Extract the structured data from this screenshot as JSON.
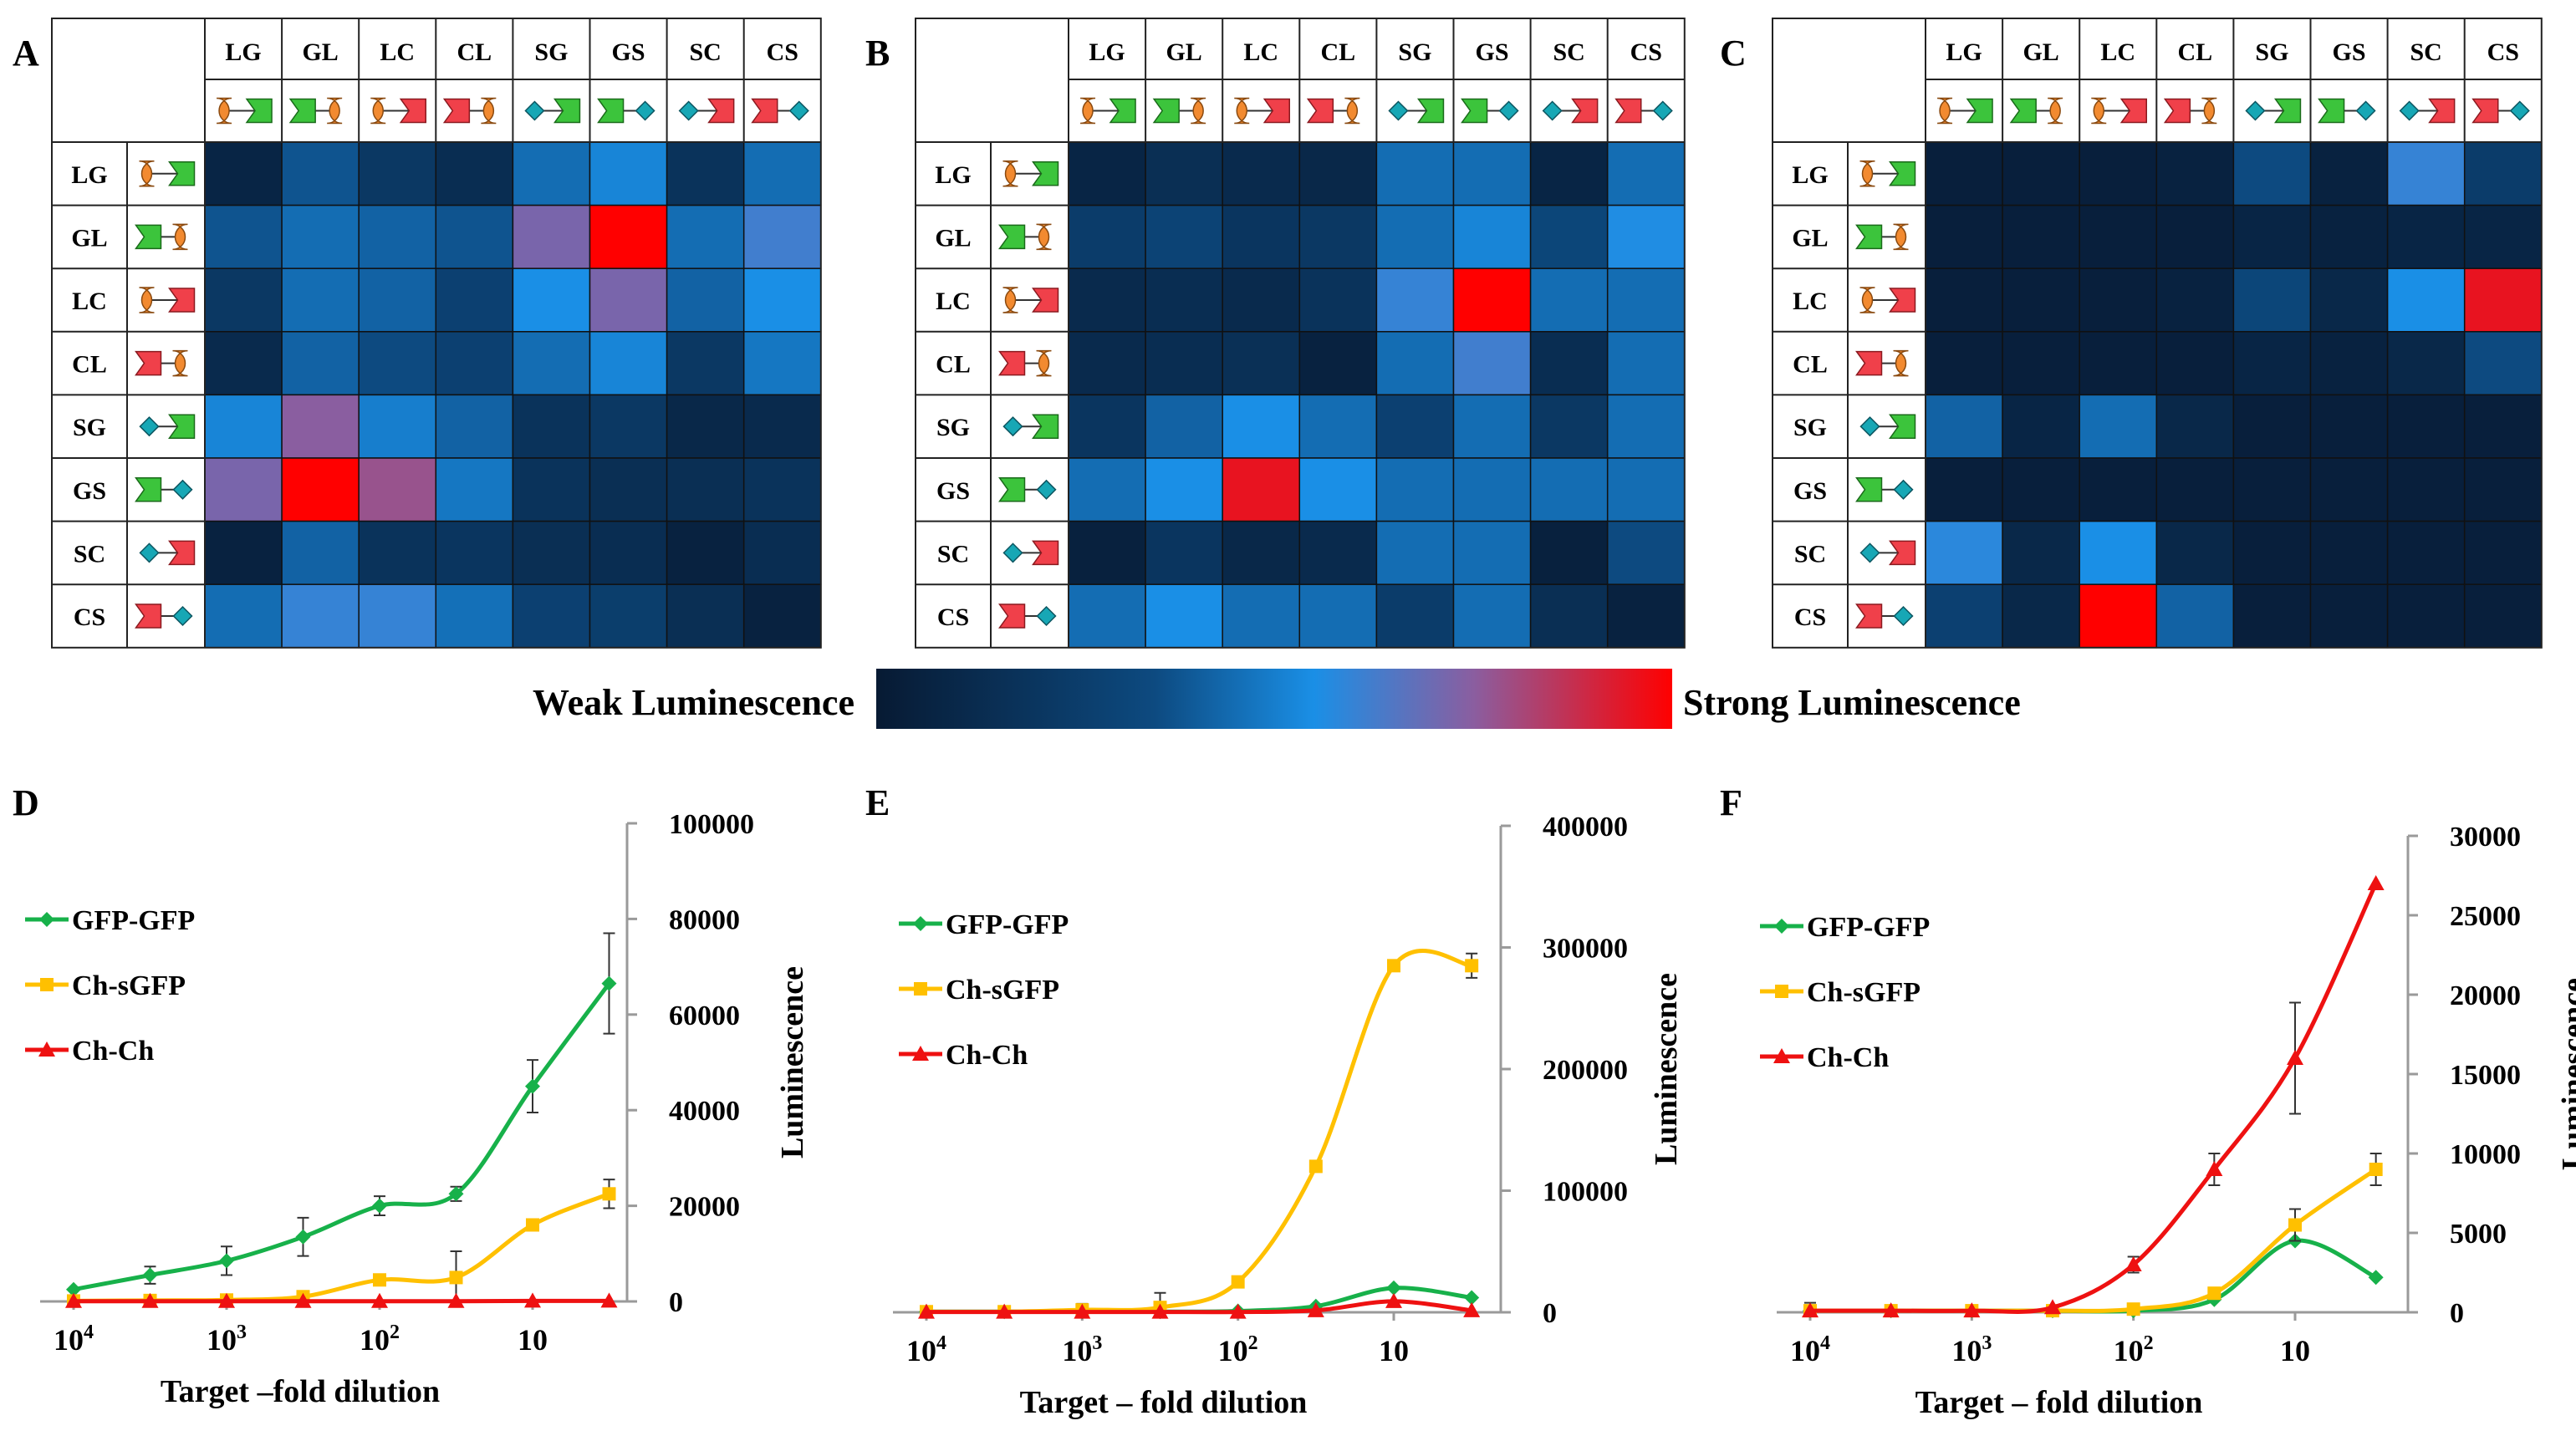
{
  "figure": {
    "colorbar": {
      "low_label": "Weak Luminescence",
      "high_label": "Strong Luminescence"
    },
    "colors": {
      "low": "#071a33",
      "mid": "#1a8fe6",
      "violet": "#8a5ea0",
      "high": "#ff0000",
      "grid": "#000000",
      "green": "#17b14a",
      "yellow": "#ffc000",
      "red": "#ee1111"
    },
    "icons": {
      "L": "orange-cup-icon",
      "G": "green-cup-icon",
      "C": "red-cup-icon",
      "S": "teal-diamond-icon"
    }
  },
  "chart_data": [
    {
      "panel": "A",
      "type": "heatmap",
      "scale": "0 = weak luminescence, 1 = strong luminescence",
      "columns": [
        "LG",
        "GL",
        "LC",
        "CL",
        "SG",
        "GS",
        "SC",
        "CS"
      ],
      "rows": [
        "LG",
        "GL",
        "LC",
        "CL",
        "SG",
        "GS",
        "SC",
        "CS"
      ],
      "values": [
        [
          0.08,
          0.38,
          0.22,
          0.14,
          0.45,
          0.52,
          0.18,
          0.45
        ],
        [
          0.38,
          0.45,
          0.42,
          0.38,
          0.72,
          1.0,
          0.45,
          0.62
        ],
        [
          0.22,
          0.45,
          0.42,
          0.28,
          0.55,
          0.72,
          0.42,
          0.55
        ],
        [
          0.12,
          0.42,
          0.35,
          0.28,
          0.45,
          0.52,
          0.22,
          0.48
        ],
        [
          0.52,
          0.75,
          0.5,
          0.42,
          0.18,
          0.22,
          0.1,
          0.12
        ],
        [
          0.72,
          1.0,
          0.78,
          0.48,
          0.18,
          0.15,
          0.15,
          0.18
        ],
        [
          0.06,
          0.42,
          0.18,
          0.2,
          0.15,
          0.14,
          0.06,
          0.14
        ],
        [
          0.45,
          0.6,
          0.6,
          0.46,
          0.28,
          0.26,
          0.15,
          0.06
        ]
      ]
    },
    {
      "panel": "B",
      "type": "heatmap",
      "scale": "0 = weak luminescence, 1 = strong luminescence",
      "columns": [
        "LG",
        "GL",
        "LC",
        "CL",
        "SG",
        "GS",
        "SC",
        "CS"
      ],
      "rows": [
        "LG",
        "GL",
        "LC",
        "CL",
        "SG",
        "GS",
        "SC",
        "CS"
      ],
      "values": [
        [
          0.08,
          0.15,
          0.12,
          0.1,
          0.45,
          0.45,
          0.08,
          0.45
        ],
        [
          0.25,
          0.3,
          0.2,
          0.22,
          0.45,
          0.52,
          0.32,
          0.56
        ],
        [
          0.12,
          0.14,
          0.12,
          0.18,
          0.6,
          1.0,
          0.45,
          0.45
        ],
        [
          0.12,
          0.14,
          0.16,
          0.06,
          0.45,
          0.62,
          0.14,
          0.45
        ],
        [
          0.2,
          0.42,
          0.55,
          0.45,
          0.28,
          0.45,
          0.22,
          0.45
        ],
        [
          0.45,
          0.55,
          0.95,
          0.55,
          0.45,
          0.45,
          0.45,
          0.45
        ],
        [
          0.05,
          0.2,
          0.1,
          0.12,
          0.45,
          0.45,
          0.05,
          0.35
        ],
        [
          0.45,
          0.55,
          0.45,
          0.45,
          0.25,
          0.45,
          0.15,
          0.06
        ]
      ]
    },
    {
      "panel": "C",
      "type": "heatmap",
      "scale": "0 = weak luminescence, 1 = strong luminescence",
      "columns": [
        "LG",
        "GL",
        "LC",
        "CL",
        "SG",
        "GS",
        "SC",
        "CS"
      ],
      "rows": [
        "LG",
        "GL",
        "LC",
        "CL",
        "SG",
        "GS",
        "SC",
        "CS"
      ],
      "values": [
        [
          0.04,
          0.04,
          0.04,
          0.06,
          0.35,
          0.06,
          0.6,
          0.25
        ],
        [
          0.04,
          0.04,
          0.04,
          0.04,
          0.08,
          0.06,
          0.08,
          0.08
        ],
        [
          0.04,
          0.04,
          0.04,
          0.06,
          0.32,
          0.1,
          0.55,
          0.95
        ],
        [
          0.04,
          0.04,
          0.04,
          0.04,
          0.08,
          0.06,
          0.1,
          0.35
        ],
        [
          0.42,
          0.08,
          0.45,
          0.1,
          0.04,
          0.04,
          0.04,
          0.04
        ],
        [
          0.04,
          0.04,
          0.04,
          0.04,
          0.04,
          0.04,
          0.04,
          0.04
        ],
        [
          0.58,
          0.1,
          0.55,
          0.1,
          0.04,
          0.04,
          0.04,
          0.04
        ],
        [
          0.28,
          0.1,
          1.0,
          0.42,
          0.04,
          0.04,
          0.04,
          0.04
        ]
      ]
    },
    {
      "panel": "D",
      "type": "line",
      "title": "",
      "xlabel": "Target –fold dilution",
      "ylabel": "Luminescence",
      "x_log10": [
        4.0,
        3.5,
        3.0,
        2.5,
        2.0,
        1.5,
        1.0,
        0.5
      ],
      "x_tick_base": "10",
      "x_ticks": [
        {
          "pos": 4,
          "exp": "4"
        },
        {
          "pos": 3,
          "exp": "3"
        },
        {
          "pos": 2,
          "exp": "2"
        },
        {
          "pos": 1,
          "exp": ""
        }
      ],
      "ylim": [
        0,
        100000
      ],
      "y_ticks": [
        "0",
        "20000",
        "40000",
        "60000",
        "80000",
        "100000"
      ],
      "legend": "top-left",
      "series": [
        {
          "name": "GFP-GFP",
          "color": "#17b14a",
          "marker": "diamond",
          "values": [
            2500,
            5500,
            8500,
            13500,
            20000,
            22500,
            45000,
            66500
          ],
          "errors": [
            0,
            1800,
            3000,
            4000,
            2000,
            1500,
            5500,
            10500
          ]
        },
        {
          "name": "Ch-sGFP",
          "color": "#ffc000",
          "marker": "square",
          "values": [
            100,
            200,
            300,
            1000,
            4500,
            5000,
            16000,
            22500
          ],
          "errors": [
            0,
            0,
            0,
            0,
            0,
            5500,
            0,
            3000
          ]
        },
        {
          "name": "Ch-Ch",
          "color": "#ee1111",
          "marker": "triangle",
          "values": [
            50,
            50,
            50,
            50,
            50,
            50,
            100,
            100
          ],
          "errors": [
            0,
            0,
            0,
            0,
            0,
            0,
            0,
            0
          ]
        }
      ]
    },
    {
      "panel": "E",
      "type": "line",
      "title": "",
      "xlabel": "Target – fold dilution",
      "ylabel": "Luminescence",
      "x_log10": [
        4.0,
        3.5,
        3.0,
        2.5,
        2.0,
        1.5,
        1.0,
        0.5
      ],
      "x_tick_base": "10",
      "x_ticks": [
        {
          "pos": 4,
          "exp": "4"
        },
        {
          "pos": 3,
          "exp": "3"
        },
        {
          "pos": 2,
          "exp": "2"
        },
        {
          "pos": 1,
          "exp": ""
        }
      ],
      "ylim": [
        0,
        400000
      ],
      "y_ticks": [
        "0",
        "100000",
        "200000",
        "300000",
        "400000"
      ],
      "legend": "top-left",
      "series": [
        {
          "name": "GFP-GFP",
          "color": "#17b14a",
          "marker": "diamond",
          "values": [
            500,
            500,
            500,
            500,
            1000,
            5000,
            20000,
            12000
          ],
          "errors": [
            0,
            0,
            0,
            0,
            0,
            0,
            0,
            0
          ]
        },
        {
          "name": "Ch-sGFP",
          "color": "#ffc000",
          "marker": "square",
          "values": [
            500,
            500,
            2000,
            4000,
            25000,
            120000,
            285000,
            285000
          ],
          "errors": [
            0,
            0,
            5000,
            12000,
            3000,
            3000,
            3000,
            10000
          ]
        },
        {
          "name": "Ch-Ch",
          "color": "#ee1111",
          "marker": "triangle",
          "values": [
            300,
            300,
            300,
            300,
            300,
            1500,
            9000,
            1500
          ],
          "errors": [
            0,
            0,
            0,
            0,
            0,
            0,
            0,
            0
          ]
        }
      ]
    },
    {
      "panel": "F",
      "type": "line",
      "title": "",
      "xlabel": "Target – fold dilution",
      "ylabel": "Luminescence",
      "x_log10": [
        4.0,
        3.5,
        3.0,
        2.5,
        2.0,
        1.5,
        1.0,
        0.5
      ],
      "x_tick_base": "10",
      "x_ticks": [
        {
          "pos": 4,
          "exp": "4"
        },
        {
          "pos": 3,
          "exp": "3"
        },
        {
          "pos": 2,
          "exp": "2"
        },
        {
          "pos": 1,
          "exp": ""
        }
      ],
      "ylim": [
        0,
        30000
      ],
      "y_ticks": [
        "0",
        "5000",
        "10000",
        "15000",
        "20000",
        "25000",
        "30000"
      ],
      "legend": "top-left",
      "series": [
        {
          "name": "GFP-GFP",
          "color": "#17b14a",
          "marker": "diamond",
          "values": [
            100,
            100,
            100,
            100,
            100,
            800,
            4500,
            2200
          ],
          "errors": [
            500,
            300,
            200,
            0,
            0,
            0,
            0,
            0
          ]
        },
        {
          "name": "Ch-sGFP",
          "color": "#ffc000",
          "marker": "square",
          "values": [
            100,
            100,
            100,
            100,
            200,
            1200,
            5500,
            9000
          ],
          "errors": [
            0,
            0,
            0,
            0,
            0,
            0,
            1000,
            1000
          ]
        },
        {
          "name": "Ch-Ch",
          "color": "#ee1111",
          "marker": "triangle",
          "values": [
            100,
            100,
            100,
            300,
            3000,
            9000,
            16000,
            27000
          ],
          "errors": [
            0,
            0,
            0,
            0,
            500,
            1000,
            3500,
            0
          ]
        }
      ]
    }
  ]
}
